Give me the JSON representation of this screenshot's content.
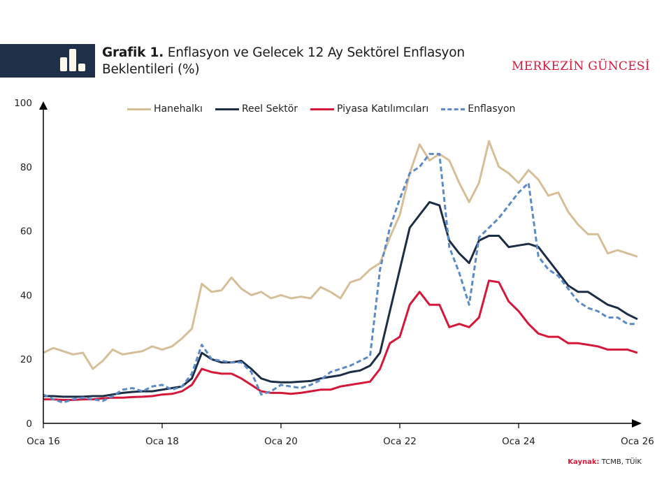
{
  "header": {
    "title_bold": "Grafik 1.",
    "title_rest_line1": " Enflasyon ve Gelecek 12 Ay Sektörel Enflasyon",
    "title_line2": "Beklentileri (%)",
    "brand": "MERKEZİN GÜNCESİ",
    "banner_icon": "bar-chart-icon"
  },
  "source": {
    "label": "Kaynak:",
    "text": "TCMB, TÜİK"
  },
  "colors": {
    "banner": "#1d3047",
    "brand": "#d5173a",
    "hanehalki": "#d6bf98",
    "reel": "#1c2e45",
    "piyasa": "#d5173a",
    "enflasyon": "#5b8bc7"
  },
  "chart_data": {
    "type": "line",
    "title": "Enflasyon ve Gelecek 12 Ay Sektörel Enflasyon Beklentileri (%)",
    "xlabel": "",
    "ylabel": "",
    "ylim": [
      0,
      100
    ],
    "yticks": [
      "0",
      "20",
      "40",
      "60",
      "80",
      "100"
    ],
    "yticks_values": [
      0,
      20,
      40,
      60,
      80,
      100
    ],
    "xticks": [
      "Oca 16",
      "Oca 18",
      "Oca 20",
      "Oca 22",
      "Oca 24",
      "Oca 26"
    ],
    "x_start": "2016-01",
    "x_end": "2026-01",
    "x_step_months": 2,
    "grid": false,
    "legend": "top",
    "series": [
      {
        "name": "Hanehalkı",
        "key": "hanehalki",
        "style": "solid",
        "values": [
          22,
          23.5,
          22.5,
          21.5,
          22,
          17,
          19.5,
          23,
          21.5,
          22,
          22.5,
          24,
          23,
          24,
          26.5,
          29.5,
          43.5,
          41,
          41.5,
          45.5,
          42,
          40,
          41,
          39,
          40,
          39,
          39.5,
          39,
          42.5,
          41,
          39,
          44,
          45,
          48,
          50,
          58,
          65,
          78,
          87,
          82,
          84,
          82,
          75,
          69,
          75,
          88,
          80,
          78,
          75,
          79,
          76,
          71,
          72,
          66,
          62,
          59,
          59,
          53,
          54,
          53,
          52
        ]
      },
      {
        "name": "Reel Sektör",
        "key": "reel",
        "style": "solid",
        "values": [
          8.5,
          8.5,
          8.3,
          8.3,
          8.3,
          8.5,
          8.5,
          9,
          9.5,
          9.8,
          10,
          10,
          10.5,
          11,
          11.5,
          14,
          22,
          20,
          19,
          19,
          19.5,
          17,
          14,
          13,
          12.8,
          12.8,
          13,
          13.2,
          14,
          14.5,
          15,
          16,
          16.5,
          18,
          22,
          35,
          48,
          61,
          65,
          69,
          68,
          57,
          53,
          50,
          57,
          58.5,
          58.5,
          55,
          55.5,
          56,
          55,
          51,
          47,
          43,
          41,
          41,
          39,
          37,
          36,
          34,
          32.5
        ]
      },
      {
        "name": "Piyasa Katılımcıları",
        "key": "piyasa",
        "style": "solid",
        "values": [
          7.5,
          7.5,
          7.3,
          7.3,
          7.5,
          7.5,
          7.8,
          8,
          8,
          8.2,
          8.3,
          8.5,
          9,
          9.2,
          10,
          12,
          17,
          16,
          15.5,
          15.5,
          14,
          12,
          10,
          9.5,
          9.5,
          9.2,
          9.5,
          10,
          10.5,
          10.5,
          11.5,
          12,
          12.5,
          13,
          17,
          25,
          27,
          37,
          41,
          37,
          37,
          30,
          31,
          30,
          33,
          44.5,
          44,
          38,
          35,
          31,
          28,
          27,
          27,
          25,
          25,
          24.5,
          24,
          23,
          23,
          23,
          22
        ]
      },
      {
        "name": "Enflasyon",
        "key": "enflasyon",
        "style": "dashed",
        "values": [
          9,
          7.5,
          6.5,
          7.5,
          8,
          7.5,
          7,
          8.5,
          10.5,
          11,
          10,
          11.5,
          12,
          10.5,
          11.5,
          15.5,
          24.5,
          20,
          19.5,
          19,
          19,
          16,
          9,
          10,
          12,
          11.5,
          11,
          12,
          13.5,
          16,
          17,
          18,
          19.5,
          21,
          48,
          61,
          70,
          78,
          80,
          84,
          84,
          55,
          47,
          37,
          58,
          61,
          64,
          68,
          72,
          75,
          52,
          48,
          46,
          42,
          38,
          36,
          35,
          33,
          33,
          31,
          31
        ]
      }
    ]
  }
}
